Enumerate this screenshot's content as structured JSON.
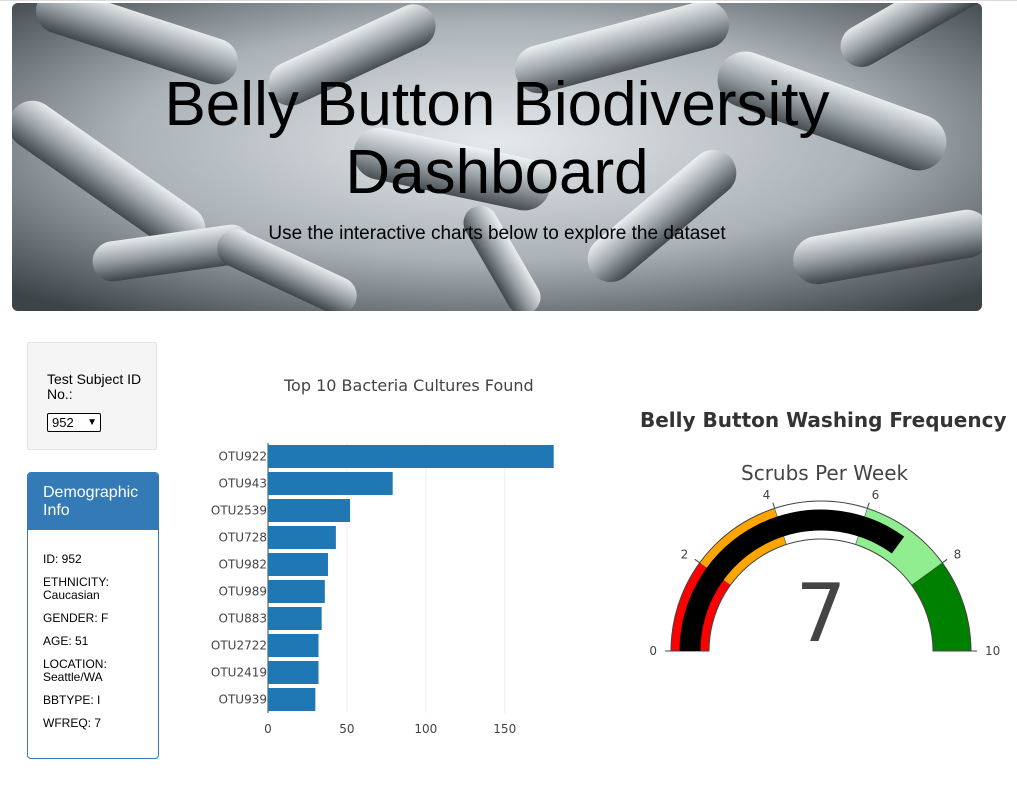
{
  "header": {
    "title": "Belly Button Biodiversity Dashboard",
    "subtitle": "Use the interactive charts below to explore the dataset"
  },
  "selector": {
    "label": "Test Subject ID No.:",
    "selected": "952"
  },
  "demographics": {
    "title": "Demographic Info",
    "lines": [
      "ID: 952",
      "ETHNICITY: Caucasian",
      "GENDER: F",
      "AGE: 51",
      "LOCATION: Seattle/WA",
      "BBTYPE: I",
      "WFREQ: 7"
    ]
  },
  "gauge_panel": {
    "title": "Belly Button Washing Frequency"
  },
  "chart_data": [
    {
      "type": "bar",
      "orientation": "horizontal",
      "title": "Top 10 Bacteria Cultures Found",
      "categories": [
        "OTU922",
        "OTU943",
        "OTU2539",
        "OTU728",
        "OTU982",
        "OTU989",
        "OTU883",
        "OTU2722",
        "OTU2419",
        "OTU939"
      ],
      "values": [
        181,
        79,
        52,
        43,
        38,
        36,
        34,
        32,
        32,
        30
      ],
      "xlim": [
        0,
        185
      ],
      "xticks": [
        0,
        50,
        100,
        150
      ],
      "grid": true,
      "color": "#1f77b4"
    },
    {
      "type": "gauge",
      "title": "Scrubs Per Week",
      "value": 7,
      "range": [
        0,
        10
      ],
      "ticks": [
        0,
        2,
        4,
        6,
        8,
        10
      ],
      "steps": [
        {
          "range": [
            0,
            2
          ],
          "color": "#ff0000"
        },
        {
          "range": [
            2,
            4
          ],
          "color": "#ffa500"
        },
        {
          "range": [
            4,
            6
          ],
          "color": "#ffffff"
        },
        {
          "range": [
            6,
            8
          ],
          "color": "#90ee90"
        },
        {
          "range": [
            8,
            10
          ],
          "color": "#008000"
        }
      ],
      "bar_color": "#000000"
    }
  ]
}
